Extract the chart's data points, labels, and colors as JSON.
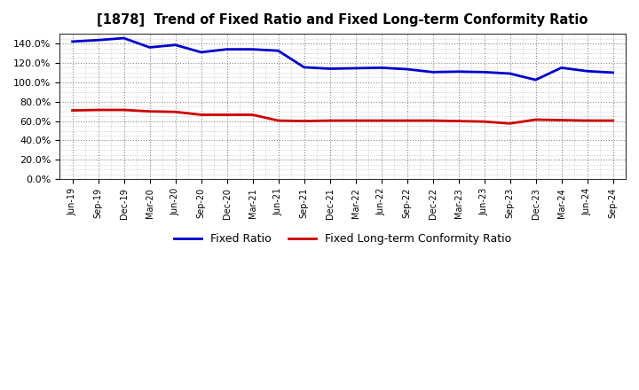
{
  "title": "[1878]  Trend of Fixed Ratio and Fixed Long-term Conformity Ratio",
  "x_labels": [
    "Jun-19",
    "Sep-19",
    "Dec-19",
    "Mar-20",
    "Jun-20",
    "Sep-20",
    "Dec-20",
    "Mar-21",
    "Jun-21",
    "Sep-21",
    "Dec-21",
    "Mar-22",
    "Jun-22",
    "Sep-22",
    "Dec-22",
    "Mar-23",
    "Jun-23",
    "Sep-23",
    "Dec-23",
    "Mar-24",
    "Jun-24",
    "Sep-24"
  ],
  "fixed_ratio": [
    142.0,
    143.5,
    145.5,
    136.0,
    138.5,
    131.0,
    134.0,
    134.0,
    132.5,
    115.5,
    114.0,
    114.5,
    115.0,
    113.5,
    110.5,
    111.0,
    110.5,
    109.0,
    102.5,
    115.0,
    111.5,
    110.0
  ],
  "fixed_lt_ratio": [
    71.0,
    71.5,
    71.5,
    70.0,
    69.5,
    66.5,
    66.5,
    66.5,
    60.5,
    60.0,
    60.5,
    60.5,
    60.5,
    60.5,
    60.5,
    60.0,
    59.5,
    57.5,
    61.5,
    61.0,
    60.5,
    60.5
  ],
  "fixed_ratio_color": "#0000cc",
  "fixed_lt_ratio_color": "#cc0000",
  "bg_color": "#ffffff",
  "plot_bg_color": "#ffffff",
  "grid_color": "#555555",
  "ylim": [
    0,
    150
  ],
  "yticks": [
    0,
    20,
    40,
    60,
    80,
    100,
    120,
    140
  ],
  "legend_fixed": "Fixed Ratio",
  "legend_lt": "Fixed Long-term Conformity Ratio",
  "line_width": 2.0
}
